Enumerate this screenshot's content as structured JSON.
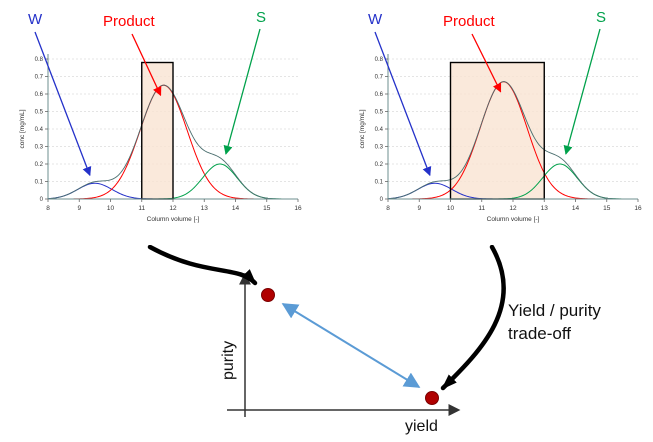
{
  "colors": {
    "w": "#2431c9",
    "product": "#ff0000",
    "s": "#00a14b",
    "sum": "#4a6e6e",
    "window_fill": "#f9e4d2",
    "window_border": "#000000",
    "dot": "#b00000",
    "dot_edge": "#7a0000",
    "tradeoff_arrow": "#5b9bd5",
    "flow_arrow": "#000000",
    "axis": "#6d8f8f",
    "tick_text": "#333333",
    "grid": "#c9c9c9"
  },
  "chart_data": [
    {
      "type": "line",
      "name": "narrow-collection-window",
      "ylabel": "conc [mg/mL]",
      "xlabel": "Column volume [-]",
      "xlim": [
        8,
        16
      ],
      "ylim": [
        0,
        0.8
      ],
      "x_ticks": [
        "8",
        "9",
        "10",
        "11",
        "12",
        "13",
        "14",
        "15",
        "16"
      ],
      "y_ticks": [
        "0",
        "0.1",
        "0.2",
        "0.3",
        "0.4",
        "0.5",
        "0.6",
        "0.7",
        "0.8"
      ],
      "grid": "horizontal-dashed",
      "window": [
        11,
        12
      ],
      "peaks": [
        {
          "name": "W",
          "color_key": "w",
          "center": 9.5,
          "sigma": 0.55,
          "height": 0.09
        },
        {
          "name": "Product",
          "color_key": "product",
          "center": 11.7,
          "sigma": 0.75,
          "height": 0.65
        },
        {
          "name": "S",
          "color_key": "s",
          "center": 13.5,
          "sigma": 0.55,
          "height": 0.2
        }
      ],
      "labels": {
        "w": "W",
        "product": "Product",
        "s": "S"
      }
    },
    {
      "type": "line",
      "name": "wide-collection-window",
      "ylabel": "conc [mg/mL]",
      "xlabel": "Column volume [-]",
      "xlim": [
        8,
        16
      ],
      "ylim": [
        0,
        0.8
      ],
      "x_ticks": [
        "8",
        "9",
        "10",
        "11",
        "12",
        "13",
        "14",
        "15",
        "16"
      ],
      "y_ticks": [
        "0",
        "0.1",
        "0.2",
        "0.3",
        "0.4",
        "0.5",
        "0.6",
        "0.7",
        "0.8"
      ],
      "grid": "horizontal-dashed",
      "window": [
        10,
        13
      ],
      "peaks": [
        {
          "name": "W",
          "color_key": "w",
          "center": 9.5,
          "sigma": 0.55,
          "height": 0.09
        },
        {
          "name": "Product",
          "color_key": "product",
          "center": 11.7,
          "sigma": 0.75,
          "height": 0.67
        },
        {
          "name": "S",
          "color_key": "s",
          "center": 13.5,
          "sigma": 0.55,
          "height": 0.2
        }
      ],
      "labels": {
        "w": "W",
        "product": "Product",
        "s": "S"
      }
    }
  ],
  "sketch": {
    "purity_label": "purity",
    "yield_label": "yield"
  },
  "annotation": {
    "line1": "Yield / purity",
    "line2": "trade-off"
  }
}
